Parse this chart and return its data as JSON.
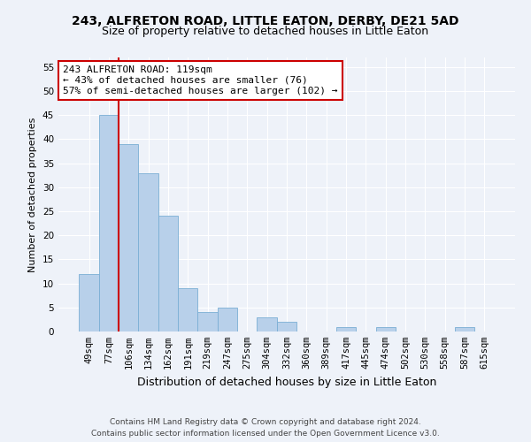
{
  "title": "243, ALFRETON ROAD, LITTLE EATON, DERBY, DE21 5AD",
  "subtitle": "Size of property relative to detached houses in Little Eaton",
  "xlabel": "Distribution of detached houses by size in Little Eaton",
  "ylabel": "Number of detached properties",
  "categories": [
    "49sqm",
    "77sqm",
    "106sqm",
    "134sqm",
    "162sqm",
    "191sqm",
    "219sqm",
    "247sqm",
    "275sqm",
    "304sqm",
    "332sqm",
    "360sqm",
    "389sqm",
    "417sqm",
    "445sqm",
    "474sqm",
    "502sqm",
    "530sqm",
    "558sqm",
    "587sqm",
    "615sqm"
  ],
  "values": [
    12,
    45,
    39,
    33,
    24,
    9,
    4,
    5,
    0,
    3,
    2,
    0,
    0,
    1,
    0,
    1,
    0,
    0,
    0,
    1,
    0
  ],
  "bar_color": "#b8d0ea",
  "bar_edge_color": "#7aaed4",
  "vline_x_index": 2,
  "vline_color": "#cc0000",
  "annotation_line1": "243 ALFRETON ROAD: 119sqm",
  "annotation_line2": "← 43% of detached houses are smaller (76)",
  "annotation_line3": "57% of semi-detached houses are larger (102) →",
  "annotation_box_color": "#ffffff",
  "annotation_box_edge": "#cc0000",
  "ylim": [
    0,
    57
  ],
  "yticks": [
    0,
    5,
    10,
    15,
    20,
    25,
    30,
    35,
    40,
    45,
    50,
    55
  ],
  "background_color": "#eef2f9",
  "footer_line1": "Contains HM Land Registry data © Crown copyright and database right 2024.",
  "footer_line2": "Contains public sector information licensed under the Open Government Licence v3.0.",
  "title_fontsize": 10,
  "subtitle_fontsize": 9,
  "xlabel_fontsize": 9,
  "ylabel_fontsize": 8,
  "tick_fontsize": 7.5,
  "annotation_fontsize": 8,
  "footer_fontsize": 6.5
}
